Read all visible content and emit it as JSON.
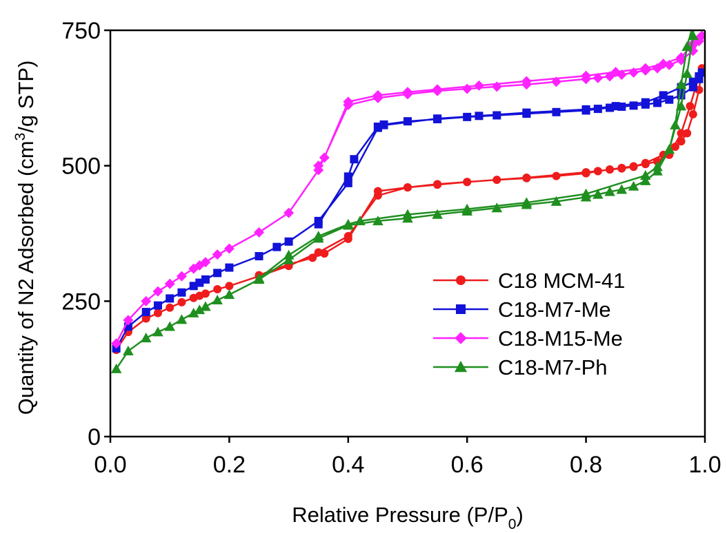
{
  "chart_data": {
    "type": "line",
    "xlabel": "Relative Pressure (P/P0)",
    "ylabel": "Quantity of N2 Adsorbed (cm3/g STP)",
    "xlim": [
      0.0,
      1.0
    ],
    "ylim": [
      0,
      750
    ],
    "x_ticks": [
      0.0,
      0.2,
      0.4,
      0.6,
      0.8,
      1.0
    ],
    "x_tick_labels": [
      "0.0",
      "0.2",
      "0.4",
      "0.6",
      "0.8",
      "1.0"
    ],
    "y_ticks": [
      0,
      250,
      500,
      750
    ],
    "y_tick_labels": [
      "0",
      "250",
      "500",
      "750"
    ],
    "grid": false,
    "legend_position": "right",
    "series": [
      {
        "name": "C18 MCM-41",
        "color": "#ee1c1c",
        "marker": "circle",
        "x": [
          0.01,
          0.03,
          0.06,
          0.08,
          0.1,
          0.12,
          0.14,
          0.15,
          0.16,
          0.18,
          0.2,
          0.25,
          0.3,
          0.35,
          0.4,
          0.45,
          0.5,
          0.55,
          0.6,
          0.65,
          0.7,
          0.75,
          0.8,
          0.82,
          0.84,
          0.86,
          0.88,
          0.9,
          0.92,
          0.94,
          0.96,
          0.975,
          0.99,
          0.995,
          0.99,
          0.98,
          0.97,
          0.96,
          0.95,
          0.93,
          0.9,
          0.88,
          0.86,
          0.84,
          0.82,
          0.8,
          0.7,
          0.6,
          0.55,
          0.5,
          0.45,
          0.4,
          0.36,
          0.34,
          0.3,
          0.25
        ],
        "y": [
          160,
          193,
          218,
          228,
          238,
          248,
          256,
          260,
          264,
          272,
          278,
          296,
          315,
          340,
          370,
          445,
          460,
          465,
          470,
          474,
          477,
          481,
          486,
          490,
          493,
          496,
          499,
          503,
          508,
          520,
          560,
          610,
          665,
          680,
          640,
          595,
          560,
          545,
          535,
          520,
          505,
          498,
          495,
          493,
          490,
          488,
          478,
          470,
          466,
          460,
          453,
          365,
          338,
          330,
          318,
          298
        ]
      },
      {
        "name": "C18-M7-Me",
        "color": "#1212d8",
        "marker": "square",
        "x": [
          0.01,
          0.03,
          0.06,
          0.08,
          0.1,
          0.12,
          0.14,
          0.15,
          0.16,
          0.18,
          0.2,
          0.25,
          0.28,
          0.3,
          0.35,
          0.4,
          0.45,
          0.46,
          0.5,
          0.55,
          0.6,
          0.65,
          0.7,
          0.75,
          0.8,
          0.82,
          0.84,
          0.86,
          0.88,
          0.9,
          0.92,
          0.94,
          0.96,
          0.98,
          0.99,
          0.995,
          0.99,
          0.98,
          0.96,
          0.93,
          0.9,
          0.85,
          0.8,
          0.7,
          0.62,
          0.55,
          0.46,
          0.45,
          0.41,
          0.4,
          0.35
        ],
        "y": [
          163,
          203,
          230,
          242,
          255,
          266,
          278,
          284,
          290,
          302,
          312,
          333,
          350,
          360,
          398,
          468,
          570,
          576,
          582,
          586,
          590,
          593,
          596,
          599,
          602,
          605,
          607,
          609,
          611,
          613,
          616,
          622,
          630,
          645,
          660,
          672,
          665,
          655,
          645,
          630,
          617,
          610,
          604,
          598,
          592,
          587,
          575,
          572,
          512,
          480,
          392
        ]
      },
      {
        "name": "C18-M15-Me",
        "color": "#ff22ff",
        "marker": "diamond",
        "x": [
          0.01,
          0.03,
          0.06,
          0.08,
          0.1,
          0.12,
          0.14,
          0.15,
          0.16,
          0.18,
          0.2,
          0.25,
          0.3,
          0.35,
          0.4,
          0.45,
          0.5,
          0.55,
          0.6,
          0.65,
          0.7,
          0.75,
          0.8,
          0.82,
          0.84,
          0.86,
          0.88,
          0.9,
          0.92,
          0.94,
          0.96,
          0.98,
          0.99,
          0.995,
          0.99,
          0.98,
          0.96,
          0.93,
          0.9,
          0.85,
          0.8,
          0.7,
          0.62,
          0.55,
          0.5,
          0.45,
          0.4,
          0.36,
          0.35
        ],
        "y": [
          172,
          215,
          250,
          268,
          282,
          296,
          310,
          316,
          322,
          336,
          347,
          377,
          413,
          492,
          612,
          625,
          632,
          638,
          642,
          646,
          650,
          655,
          660,
          662,
          665,
          668,
          672,
          676,
          680,
          686,
          695,
          712,
          730,
          740,
          735,
          725,
          700,
          688,
          680,
          673,
          666,
          656,
          648,
          641,
          636,
          630,
          618,
          515,
          500
        ]
      },
      {
        "name": "C18-M7-Ph",
        "color": "#1f8f1f",
        "marker": "triangle",
        "x": [
          0.01,
          0.03,
          0.06,
          0.08,
          0.1,
          0.12,
          0.14,
          0.15,
          0.16,
          0.18,
          0.2,
          0.25,
          0.3,
          0.35,
          0.4,
          0.45,
          0.5,
          0.55,
          0.6,
          0.65,
          0.7,
          0.75,
          0.8,
          0.82,
          0.84,
          0.86,
          0.88,
          0.9,
          0.92,
          0.94,
          0.95,
          0.96,
          0.97,
          0.98,
          0.985,
          0.98,
          0.97,
          0.96,
          0.94,
          0.92,
          0.9,
          0.8,
          0.7,
          0.6,
          0.5,
          0.42,
          0.4,
          0.35,
          0.3,
          0.25
        ],
        "y": [
          125,
          158,
          182,
          193,
          203,
          216,
          228,
          234,
          240,
          252,
          262,
          290,
          326,
          366,
          390,
          398,
          403,
          410,
          416,
          422,
          428,
          434,
          442,
          447,
          452,
          456,
          462,
          472,
          490,
          530,
          575,
          650,
          720,
          760,
          800,
          740,
          670,
          610,
          530,
          498,
          482,
          448,
          432,
          420,
          410,
          398,
          392,
          370,
          335,
          292
        ]
      }
    ]
  }
}
